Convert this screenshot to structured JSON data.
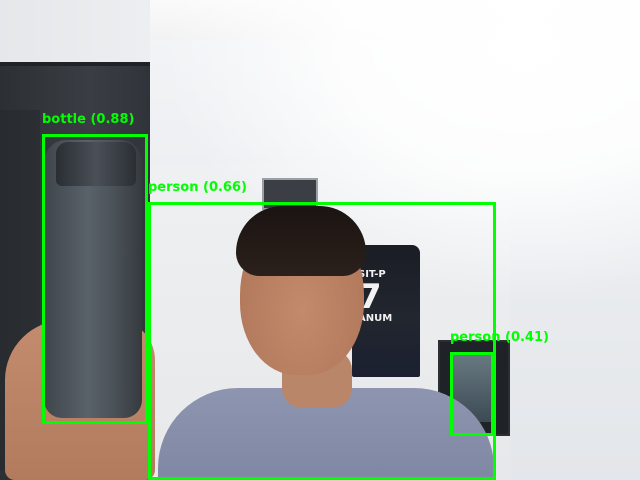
{
  "detections": [
    {
      "label": "bottle",
      "score": "(0.88)",
      "color": "#00ff00"
    },
    {
      "label": "person",
      "score": "(0.66)",
      "color": "#00ff00"
    },
    {
      "label": "person",
      "score": "(0.41)",
      "color": "#00ff00"
    }
  ],
  "scene": {
    "jersey_text_top": "SIT-P",
    "jersey_number": "7",
    "jersey_text_bottom": "ANUM"
  }
}
